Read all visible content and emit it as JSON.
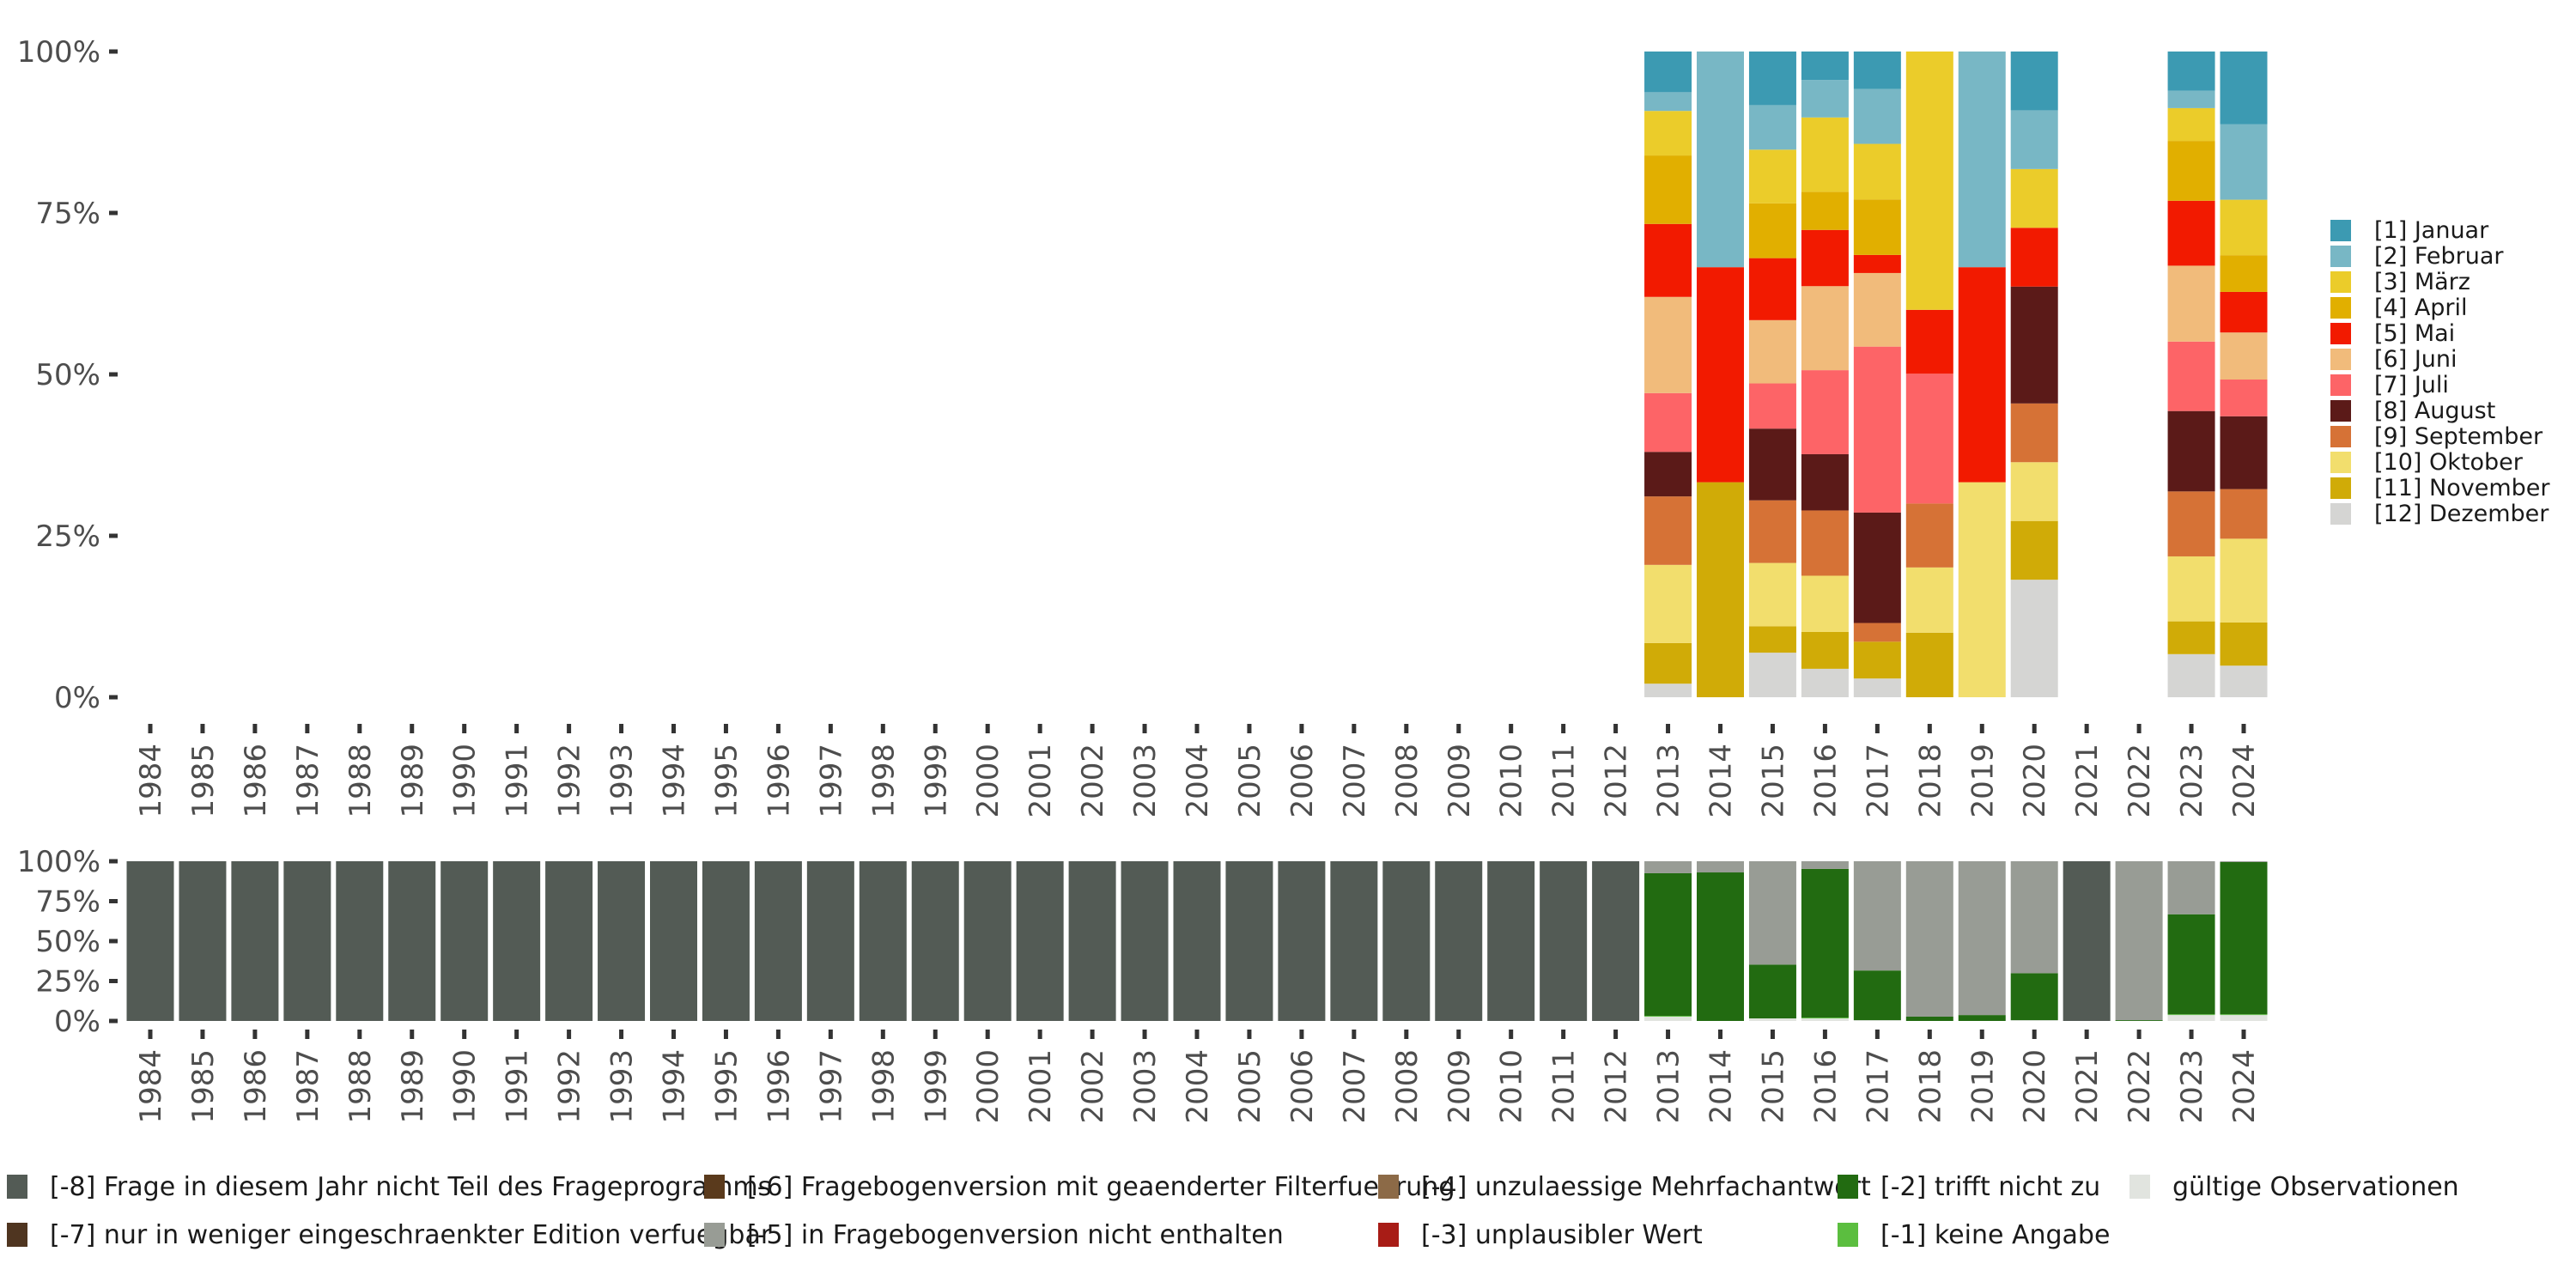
{
  "chart_data": [
    {
      "type": "bar",
      "stacked": true,
      "normalized": true,
      "title": "",
      "xlabel": "",
      "ylabel": "",
      "ylim": [
        0,
        1
      ],
      "yticks": [
        "0%",
        "25%",
        "50%",
        "75%",
        "100%"
      ],
      "categories": [
        "1984",
        "1985",
        "1986",
        "1987",
        "1988",
        "1989",
        "1990",
        "1991",
        "1992",
        "1993",
        "1994",
        "1995",
        "1996",
        "1997",
        "1998",
        "1999",
        "2000",
        "2001",
        "2002",
        "2003",
        "2004",
        "2005",
        "2006",
        "2007",
        "2008",
        "2009",
        "2010",
        "2011",
        "2012",
        "2013",
        "2014",
        "2015",
        "2016",
        "2017",
        "2018",
        "2019",
        "2020",
        "2021",
        "2022",
        "2023",
        "2024"
      ],
      "legend_position": "right",
      "series": [
        {
          "name": "[1] Januar",
          "color": "#3C9AB2",
          "values": {
            "2013": 6.3,
            "2014": 0,
            "2015": 8.3,
            "2016": 4.4,
            "2017": 5.8,
            "2018": 0,
            "2019": 0,
            "2020": 9.1,
            "2023": 6.1,
            "2024": 11.3
          }
        },
        {
          "name": "[2] Februar",
          "color": "#78B7C5",
          "values": {
            "2013": 2.9,
            "2014": 33.4,
            "2015": 6.9,
            "2016": 5.8,
            "2017": 8.5,
            "2018": 0,
            "2019": 33.4,
            "2020": 9.1,
            "2023": 2.7,
            "2024": 11.7
          }
        },
        {
          "name": "[3] März",
          "color": "#EBCC2A",
          "values": {
            "2013": 6.9,
            "2014": 0,
            "2015": 8.3,
            "2016": 11.5,
            "2017": 8.6,
            "2018": 40.0,
            "2019": 0,
            "2020": 9.1,
            "2023": 5.1,
            "2024": 8.6
          }
        },
        {
          "name": "[4] April",
          "color": "#E1AF00",
          "values": {
            "2013": 10.6,
            "2014": 0,
            "2015": 8.5,
            "2016": 5.9,
            "2017": 8.6,
            "2018": 0,
            "2019": 0,
            "2020": 0,
            "2023": 9.3,
            "2024": 5.7
          }
        },
        {
          "name": "[5] Mai",
          "color": "#F21A00",
          "values": {
            "2013": 11.3,
            "2014": 33.3,
            "2015": 9.6,
            "2016": 8.7,
            "2017": 2.8,
            "2018": 9.9,
            "2019": 33.3,
            "2020": 9.1,
            "2023": 10.1,
            "2024": 6.3
          }
        },
        {
          "name": "[6] Juni",
          "color": "#F1BB7B",
          "values": {
            "2013": 14.9,
            "2014": 0,
            "2015": 9.8,
            "2016": 13.0,
            "2017": 11.4,
            "2018": 0,
            "2019": 0,
            "2020": 0,
            "2023": 11.8,
            "2024": 7.3
          }
        },
        {
          "name": "[7] Juli",
          "color": "#FD6467",
          "values": {
            "2013": 9.1,
            "2014": 0,
            "2015": 7.0,
            "2016": 13.0,
            "2017": 25.7,
            "2018": 20.1,
            "2019": 0,
            "2020": 0,
            "2023": 10.8,
            "2024": 5.7
          }
        },
        {
          "name": "[8] August",
          "color": "#5B1A18",
          "values": {
            "2013": 6.9,
            "2014": 0,
            "2015": 11.1,
            "2016": 8.7,
            "2017": 17.1,
            "2018": 0,
            "2019": 0,
            "2020": 18.1,
            "2023": 12.5,
            "2024": 11.3
          }
        },
        {
          "name": "[9] September",
          "color": "#D67236",
          "values": {
            "2013": 10.6,
            "2014": 0,
            "2015": 9.7,
            "2016": 10.1,
            "2017": 2.9,
            "2018": 9.9,
            "2019": 0,
            "2020": 9.1,
            "2023": 10.1,
            "2024": 7.7
          }
        },
        {
          "name": "[10] Oktober",
          "color": "#F2DE6D",
          "values": {
            "2013": 12.1,
            "2014": 0,
            "2015": 9.8,
            "2016": 8.7,
            "2017": 0,
            "2018": 10.1,
            "2019": 33.3,
            "2020": 9.1,
            "2023": 10.1,
            "2024": 13.0
          }
        },
        {
          "name": "[11] November",
          "color": "#D0AB07",
          "values": {
            "2013": 6.3,
            "2014": 33.3,
            "2015": 4.1,
            "2016": 5.7,
            "2017": 5.7,
            "2018": 10.0,
            "2019": 0,
            "2020": 9.1,
            "2023": 5.1,
            "2024": 6.7
          }
        },
        {
          "name": "[12] Dezember",
          "color": "#D5D5D3",
          "values": {
            "2013": 2.1,
            "2014": 0,
            "2015": 6.9,
            "2016": 4.4,
            "2017": 2.9,
            "2018": 0,
            "2019": 0,
            "2020": 18.2,
            "2023": 6.7,
            "2024": 4.9
          }
        }
      ]
    },
    {
      "type": "bar",
      "stacked": true,
      "normalized": true,
      "title": "",
      "xlabel": "",
      "ylabel": "",
      "ylim": [
        0,
        1
      ],
      "yticks": [
        "0%",
        "25%",
        "50%",
        "75%",
        "100%"
      ],
      "categories": [
        "1984",
        "1985",
        "1986",
        "1987",
        "1988",
        "1989",
        "1990",
        "1991",
        "1992",
        "1993",
        "1994",
        "1995",
        "1996",
        "1997",
        "1998",
        "1999",
        "2000",
        "2001",
        "2002",
        "2003",
        "2004",
        "2005",
        "2006",
        "2007",
        "2008",
        "2009",
        "2010",
        "2011",
        "2012",
        "2013",
        "2014",
        "2015",
        "2016",
        "2017",
        "2018",
        "2019",
        "2020",
        "2021",
        "2022",
        "2023",
        "2024"
      ],
      "legend_position": "bottom",
      "series": [
        {
          "name": "[-8] Frage in diesem Jahr nicht Teil des Frageprogramms",
          "color": "#535B55",
          "values": {
            "1984": 100,
            "1985": 100,
            "1986": 100,
            "1987": 100,
            "1988": 100,
            "1989": 100,
            "1990": 100,
            "1991": 100,
            "1992": 100,
            "1993": 100,
            "1994": 100,
            "1995": 100,
            "1996": 100,
            "1997": 100,
            "1998": 100,
            "1999": 100,
            "2000": 100,
            "2001": 100,
            "2002": 100,
            "2003": 100,
            "2004": 100,
            "2005": 100,
            "2006": 100,
            "2007": 100,
            "2008": 100,
            "2009": 100,
            "2010": 100,
            "2011": 100,
            "2012": 100,
            "2021": 100
          }
        },
        {
          "name": "[-7] nur in weniger eingeschraenkter Edition verfuegbar",
          "color": "#4F3520",
          "values": {}
        },
        {
          "name": "[-6] Fragebogenversion mit geaenderter Filterfuehrung",
          "color": "#5A3A1C",
          "values": {}
        },
        {
          "name": "[-5] in Fragebogenversion nicht enthalten",
          "color": "#989C95",
          "values": {
            "2013": 7.5,
            "2014": 7.0,
            "2015": 64.7,
            "2016": 4.8,
            "2017": 68.4,
            "2018": 97.3,
            "2019": 96.3,
            "2020": 70.1,
            "2022": 99.5,
            "2023": 33.2,
            "2024": 0.5
          }
        },
        {
          "name": "[-4] unzulaessige Mehrfachantwort",
          "color": "#8C6A47",
          "values": {}
        },
        {
          "name": "[-3] unplausibler Wert",
          "color": "#A81C16",
          "values": {}
        },
        {
          "name": "[-2] trifft nicht zu",
          "color": "#226B11",
          "values": {
            "2013": 89.3,
            "2014": 93.0,
            "2015": 33.7,
            "2016": 93.1,
            "2017": 31.1,
            "2018": 2.7,
            "2019": 3.7,
            "2020": 29.4,
            "2022": 0.5,
            "2023": 62.6,
            "2024": 95.3
          }
        },
        {
          "name": "[-1] keine Angabe",
          "color": "#5BBE3F",
          "values": {
            "2013": 0.5,
            "2016": 0.5,
            "2023": 0.5,
            "2024": 0.5
          }
        },
        {
          "name": "gültige Observationen",
          "color": "#E1E4DF",
          "values": {
            "2013": 2.7,
            "2015": 1.6,
            "2016": 1.6,
            "2017": 0.5,
            "2020": 0.5,
            "2023": 3.7,
            "2024": 3.7
          }
        }
      ]
    }
  ],
  "bottom_legend_rows": [
    [
      0,
      2,
      4,
      6,
      8
    ],
    [
      1,
      3,
      5,
      7
    ]
  ]
}
